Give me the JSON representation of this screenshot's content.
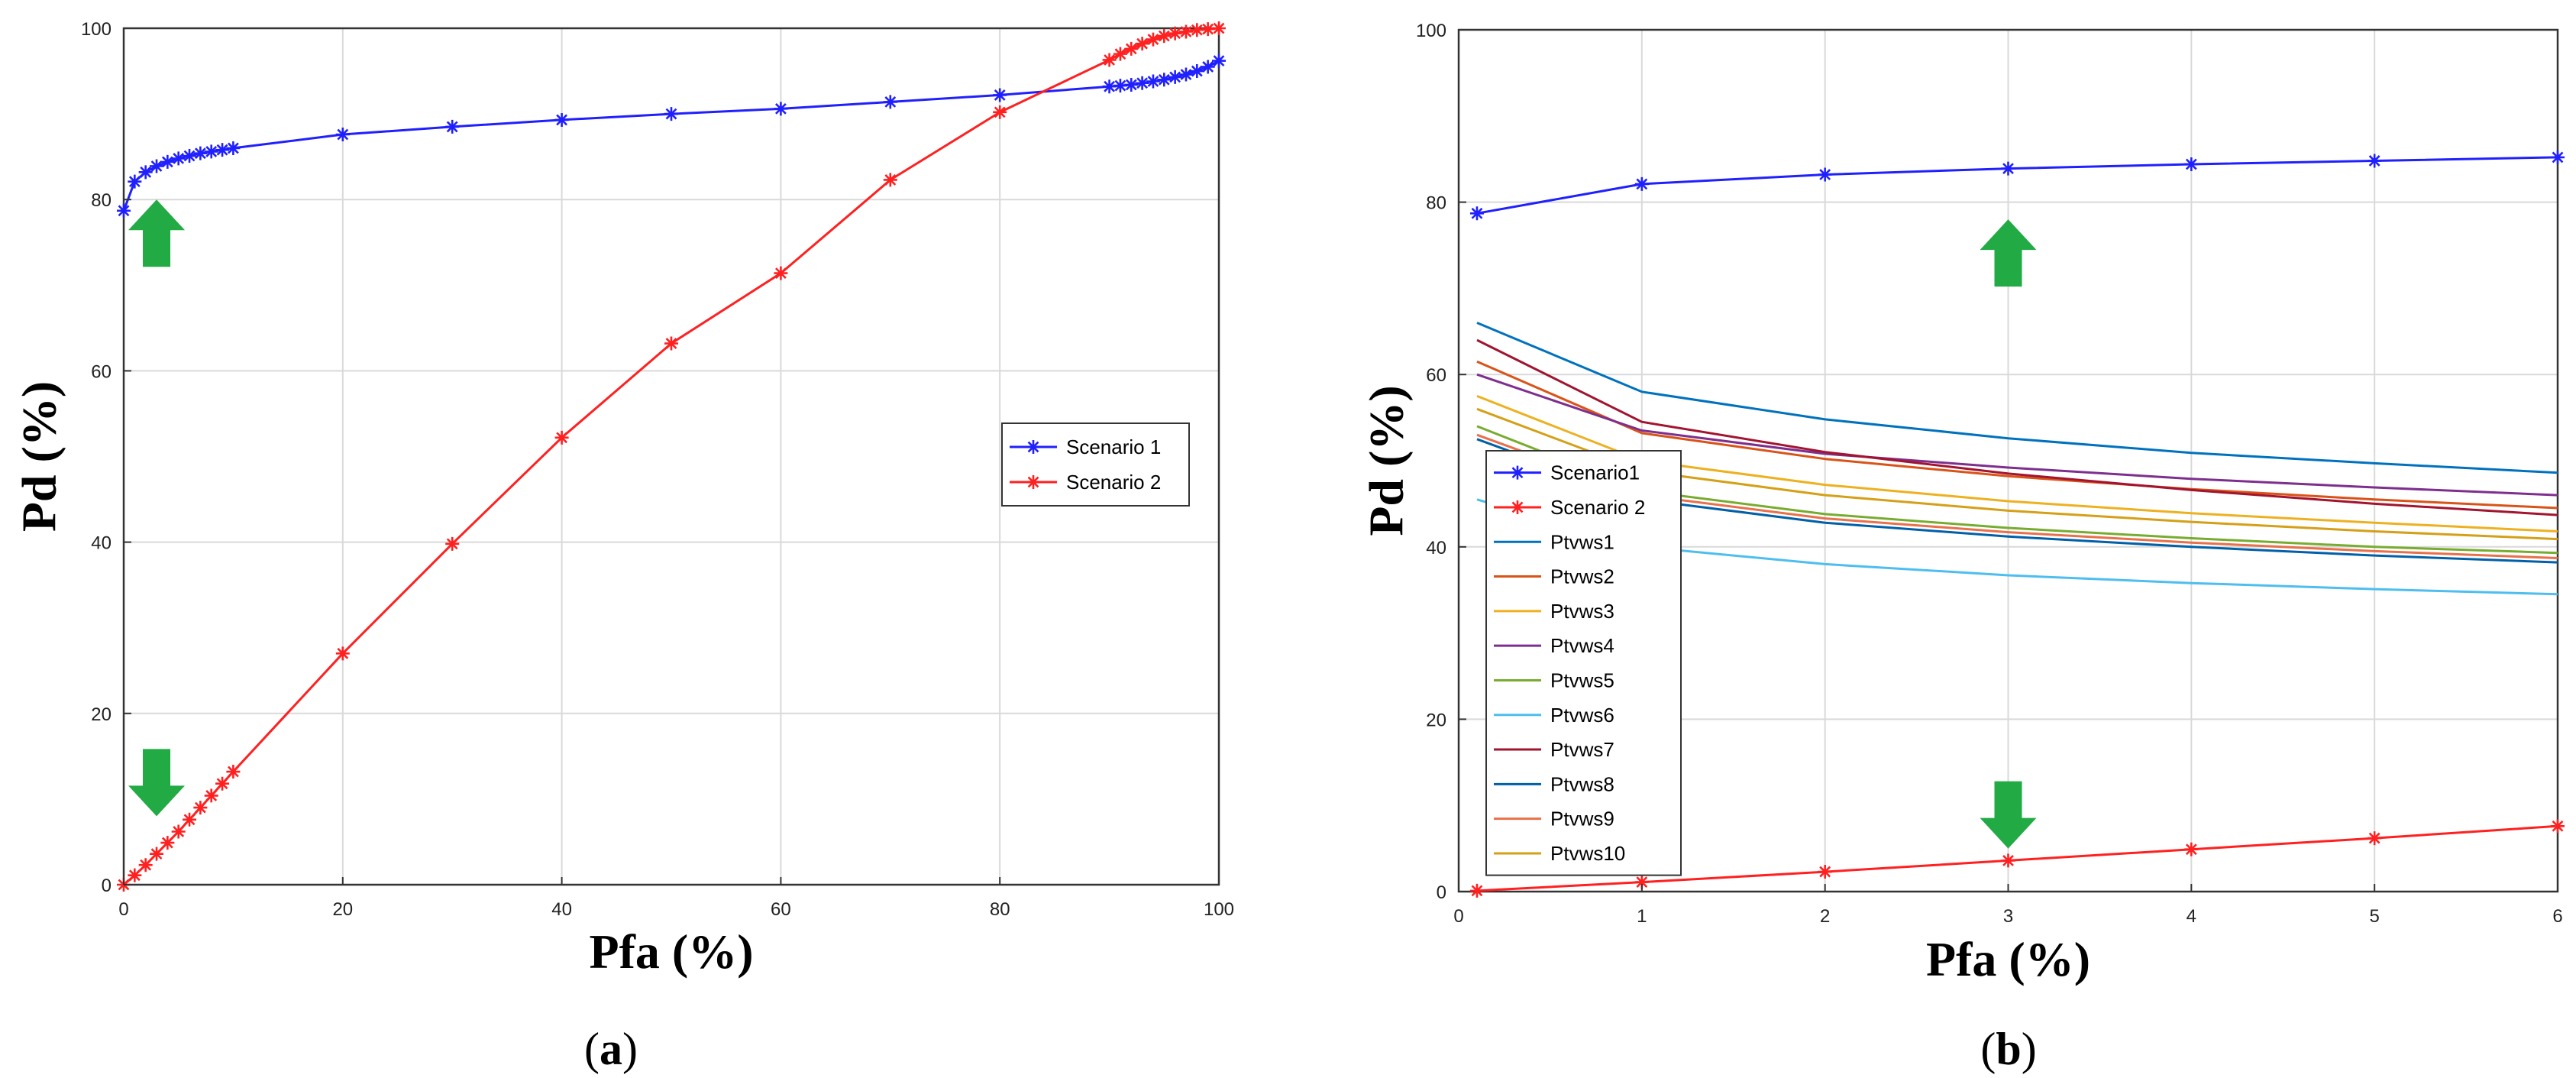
{
  "colors": {
    "scenario1": "#2020ff",
    "scenario2": "#ff2020",
    "arrow": "#22aa44",
    "ptvws": [
      "#0072BD",
      "#D95319",
      "#EDB120",
      "#7E2F8E",
      "#77AC30",
      "#4DBEEE",
      "#A2142F",
      "#0060a8",
      "#e8704a",
      "#d4a017"
    ]
  },
  "chart_data": [
    {
      "type": "line",
      "panel_label": "a",
      "xlabel": "Pfa (%)",
      "ylabel": "Pd (%)",
      "xlim": [
        0,
        100
      ],
      "ylim": [
        0,
        100
      ],
      "xticks": [
        0,
        20,
        40,
        60,
        80,
        100
      ],
      "yticks": [
        0,
        20,
        40,
        60,
        80,
        100
      ],
      "grid": true,
      "legend_position": "center-right",
      "series": [
        {
          "name": "Scenario 1",
          "marker": "star",
          "x": [
            0,
            1,
            2,
            3,
            4,
            5,
            6,
            7,
            8,
            9,
            10,
            20,
            30,
            40,
            50,
            60,
            70,
            80,
            90,
            91,
            92,
            93,
            94,
            95,
            96,
            97,
            98,
            99,
            100
          ],
          "y": [
            78.7,
            82.1,
            83.2,
            83.9,
            84.4,
            84.8,
            85.1,
            85.4,
            85.6,
            85.8,
            86.0,
            87.6,
            88.5,
            89.3,
            90.0,
            90.6,
            91.4,
            92.2,
            93.2,
            93.3,
            93.4,
            93.6,
            93.8,
            94.0,
            94.3,
            94.6,
            95.0,
            95.5,
            96.2
          ]
        },
        {
          "name": "Scenario 2",
          "marker": "star",
          "x": [
            0,
            1,
            2,
            3,
            4,
            5,
            6,
            7,
            8,
            9,
            10,
            20,
            30,
            40,
            50,
            60,
            70,
            80,
            90,
            91,
            92,
            93,
            94,
            95,
            96,
            97,
            98,
            99,
            100
          ],
          "y": [
            0,
            1.1,
            2.3,
            3.6,
            4.9,
            6.2,
            7.6,
            9.0,
            10.4,
            11.8,
            13.2,
            27.0,
            39.8,
            52.2,
            63.2,
            71.4,
            82.3,
            90.2,
            96.3,
            97.0,
            97.6,
            98.2,
            98.7,
            99.1,
            99.4,
            99.6,
            99.8,
            99.9,
            100
          ]
        }
      ],
      "annotations": [
        {
          "type": "arrow-up",
          "x": 3,
          "y": 80
        },
        {
          "type": "arrow-down",
          "x": 3,
          "y": 8
        }
      ]
    },
    {
      "type": "line",
      "panel_label": "b",
      "xlabel": "Pfa (%)",
      "ylabel": "Pd (%)",
      "xlim": [
        0,
        6
      ],
      "ylim": [
        0,
        100
      ],
      "xticks": [
        0,
        1,
        2,
        3,
        4,
        5,
        6
      ],
      "yticks": [
        0,
        20,
        40,
        60,
        80,
        100
      ],
      "grid": true,
      "legend_position": "lower-left",
      "x": [
        0.1,
        1,
        2,
        3,
        4,
        5,
        6
      ],
      "series": [
        {
          "name": "Scenario1",
          "marker": "star",
          "y": [
            78.7,
            82.1,
            83.2,
            83.9,
            84.4,
            84.8,
            85.2
          ]
        },
        {
          "name": "Scenario 2",
          "marker": "star",
          "y": [
            0.1,
            1.1,
            2.3,
            3.6,
            4.9,
            6.2,
            7.6
          ]
        },
        {
          "name": "Ptvws1",
          "y": [
            66.0,
            58.0,
            54.8,
            52.6,
            50.9,
            49.7,
            48.6
          ]
        },
        {
          "name": "Ptvws2",
          "y": [
            61.5,
            53.2,
            50.2,
            48.2,
            46.7,
            45.5,
            44.5
          ]
        },
        {
          "name": "Ptvws3",
          "y": [
            57.5,
            50.0,
            47.2,
            45.3,
            43.9,
            42.8,
            41.8
          ]
        },
        {
          "name": "Ptvws4",
          "y": [
            60.0,
            53.5,
            50.8,
            49.2,
            47.9,
            46.9,
            46.0
          ]
        },
        {
          "name": "Ptvws5",
          "y": [
            54.0,
            46.5,
            43.8,
            42.2,
            41.0,
            40.0,
            39.3
          ]
        },
        {
          "name": "Ptvws6",
          "y": [
            45.5,
            40.0,
            38.0,
            36.7,
            35.8,
            35.1,
            34.5
          ]
        },
        {
          "name": "Ptvws7",
          "y": [
            64.0,
            54.5,
            51.0,
            48.5,
            46.6,
            45.0,
            43.7
          ]
        },
        {
          "name": "Ptvws8",
          "y": [
            52.5,
            45.5,
            42.8,
            41.2,
            40.0,
            39.0,
            38.2
          ]
        },
        {
          "name": "Ptvws9",
          "y": [
            53.0,
            46.0,
            43.3,
            41.7,
            40.5,
            39.5,
            38.7
          ]
        },
        {
          "name": "Ptvws10",
          "y": [
            56.0,
            48.8,
            46.0,
            44.2,
            42.9,
            41.8,
            40.9
          ]
        }
      ],
      "annotations": [
        {
          "type": "arrow-up",
          "x": 3,
          "y": 78
        },
        {
          "type": "arrow-down",
          "x": 3,
          "y": 5
        }
      ]
    }
  ]
}
